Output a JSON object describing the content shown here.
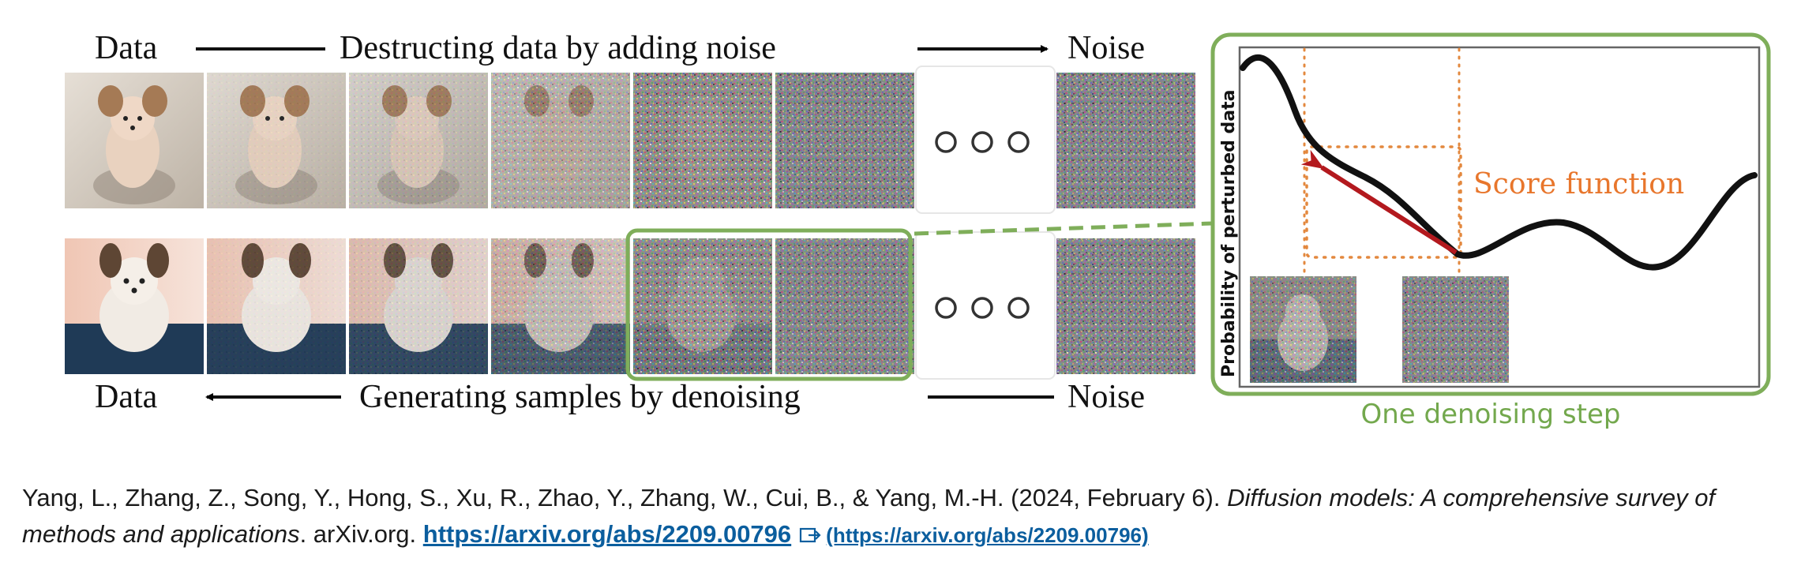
{
  "top_row": {
    "left_label": "Data",
    "caption": "Destructing data by adding noise",
    "right_label": "Noise"
  },
  "bottom_row": {
    "left_label": "Data",
    "caption": "Generating samples by denoising",
    "right_label": "Noise"
  },
  "inset": {
    "y_axis_label": "Probability of perturbed data",
    "score_label": "Score function",
    "caption": "One denoising step"
  },
  "colors": {
    "inset_border": "#7fae5a",
    "score_arrow": "#b3191e",
    "score_box": "#e3883e",
    "score_text": "#e8762c",
    "caption_green": "#73a84d",
    "link": "#0b5e9e"
  },
  "citation": {
    "authors": "Yang, L., Zhang, Z., Song, Y., Hong, S., Xu, R., Zhao, Y., Zhang, W., Cui, B., & Yang, M.-H. (2024, February 6). ",
    "title": "Diffusion models: A comprehensive survey of methods and applications",
    "source": ". arXiv.org. ",
    "link_text": "https://arxiv.org/abs/2209.00796",
    "ext_link_text": "(https://arxiv.org/abs/2209.00796)",
    "ext_icon": "external-link-icon"
  }
}
